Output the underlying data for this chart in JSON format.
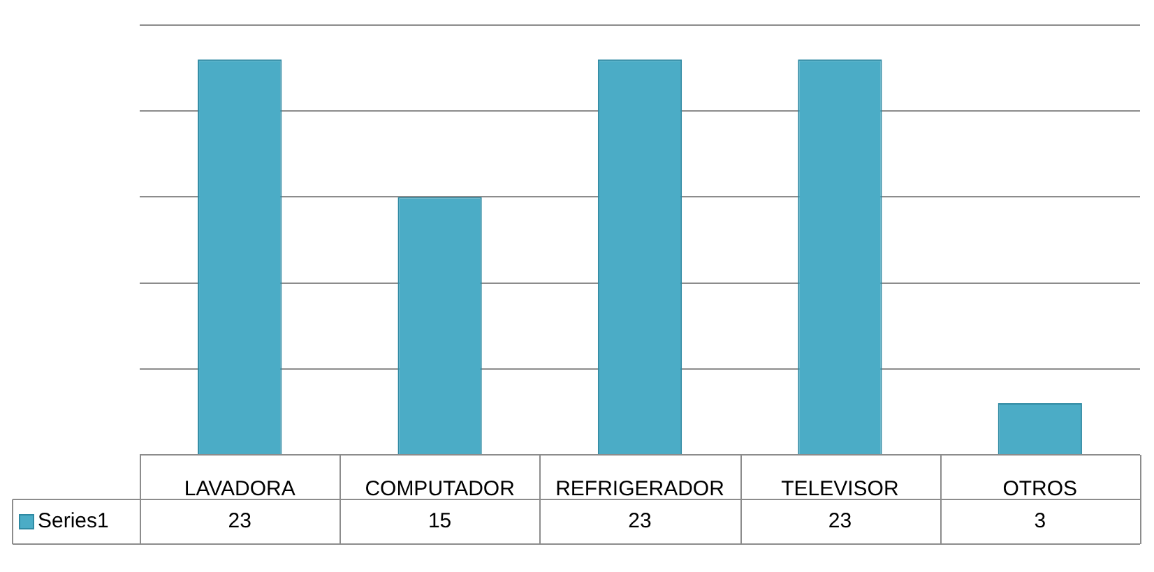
{
  "chart_data": {
    "type": "bar",
    "categories": [
      "LAVADORA",
      "COMPUTADOR",
      "REFRIGERADOR",
      "TELEVISOR",
      "OTROS"
    ],
    "series": [
      {
        "name": "Series1",
        "color": "#4bacc6",
        "values": [
          23,
          15,
          23,
          23,
          3
        ]
      }
    ],
    "ylim": [
      0,
      25
    ],
    "yticks": [
      {
        "value": 0,
        "label": null
      },
      {
        "value": 5,
        "label": null
      },
      {
        "value": 10,
        "label": null
      },
      {
        "value": 15,
        "label": null
      },
      {
        "value": 20,
        "label": null
      },
      {
        "value": 25,
        "label": null
      }
    ],
    "tick_labels": "x",
    "grid": "y",
    "data_labels": true,
    "legend": "bottom left"
  }
}
